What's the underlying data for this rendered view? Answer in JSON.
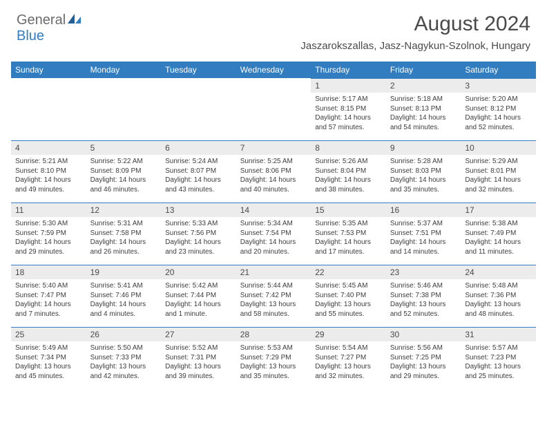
{
  "brand": {
    "word1": "General",
    "word2": "Blue",
    "color_general": "#6b6b6b",
    "color_blue": "#317dc0"
  },
  "title": "August 2024",
  "location": "Jaszarokszallas, Jasz-Nagykun-Szolnok, Hungary",
  "colors": {
    "header_bg": "#317dc0",
    "header_text": "#ffffff",
    "daynum_bg": "#ececec",
    "text": "#4a4a4a",
    "body_text": "#3c3c3c",
    "page_bg": "#ffffff"
  },
  "dayHeaders": [
    "Sunday",
    "Monday",
    "Tuesday",
    "Wednesday",
    "Thursday",
    "Friday",
    "Saturday"
  ],
  "weeks": [
    [
      null,
      null,
      null,
      null,
      {
        "n": "1",
        "sunrise": "Sunrise: 5:17 AM",
        "sunset": "Sunset: 8:15 PM",
        "daylight": "Daylight: 14 hours and 57 minutes."
      },
      {
        "n": "2",
        "sunrise": "Sunrise: 5:18 AM",
        "sunset": "Sunset: 8:13 PM",
        "daylight": "Daylight: 14 hours and 54 minutes."
      },
      {
        "n": "3",
        "sunrise": "Sunrise: 5:20 AM",
        "sunset": "Sunset: 8:12 PM",
        "daylight": "Daylight: 14 hours and 52 minutes."
      }
    ],
    [
      {
        "n": "4",
        "sunrise": "Sunrise: 5:21 AM",
        "sunset": "Sunset: 8:10 PM",
        "daylight": "Daylight: 14 hours and 49 minutes."
      },
      {
        "n": "5",
        "sunrise": "Sunrise: 5:22 AM",
        "sunset": "Sunset: 8:09 PM",
        "daylight": "Daylight: 14 hours and 46 minutes."
      },
      {
        "n": "6",
        "sunrise": "Sunrise: 5:24 AM",
        "sunset": "Sunset: 8:07 PM",
        "daylight": "Daylight: 14 hours and 43 minutes."
      },
      {
        "n": "7",
        "sunrise": "Sunrise: 5:25 AM",
        "sunset": "Sunset: 8:06 PM",
        "daylight": "Daylight: 14 hours and 40 minutes."
      },
      {
        "n": "8",
        "sunrise": "Sunrise: 5:26 AM",
        "sunset": "Sunset: 8:04 PM",
        "daylight": "Daylight: 14 hours and 38 minutes."
      },
      {
        "n": "9",
        "sunrise": "Sunrise: 5:28 AM",
        "sunset": "Sunset: 8:03 PM",
        "daylight": "Daylight: 14 hours and 35 minutes."
      },
      {
        "n": "10",
        "sunrise": "Sunrise: 5:29 AM",
        "sunset": "Sunset: 8:01 PM",
        "daylight": "Daylight: 14 hours and 32 minutes."
      }
    ],
    [
      {
        "n": "11",
        "sunrise": "Sunrise: 5:30 AM",
        "sunset": "Sunset: 7:59 PM",
        "daylight": "Daylight: 14 hours and 29 minutes."
      },
      {
        "n": "12",
        "sunrise": "Sunrise: 5:31 AM",
        "sunset": "Sunset: 7:58 PM",
        "daylight": "Daylight: 14 hours and 26 minutes."
      },
      {
        "n": "13",
        "sunrise": "Sunrise: 5:33 AM",
        "sunset": "Sunset: 7:56 PM",
        "daylight": "Daylight: 14 hours and 23 minutes."
      },
      {
        "n": "14",
        "sunrise": "Sunrise: 5:34 AM",
        "sunset": "Sunset: 7:54 PM",
        "daylight": "Daylight: 14 hours and 20 minutes."
      },
      {
        "n": "15",
        "sunrise": "Sunrise: 5:35 AM",
        "sunset": "Sunset: 7:53 PM",
        "daylight": "Daylight: 14 hours and 17 minutes."
      },
      {
        "n": "16",
        "sunrise": "Sunrise: 5:37 AM",
        "sunset": "Sunset: 7:51 PM",
        "daylight": "Daylight: 14 hours and 14 minutes."
      },
      {
        "n": "17",
        "sunrise": "Sunrise: 5:38 AM",
        "sunset": "Sunset: 7:49 PM",
        "daylight": "Daylight: 14 hours and 11 minutes."
      }
    ],
    [
      {
        "n": "18",
        "sunrise": "Sunrise: 5:40 AM",
        "sunset": "Sunset: 7:47 PM",
        "daylight": "Daylight: 14 hours and 7 minutes."
      },
      {
        "n": "19",
        "sunrise": "Sunrise: 5:41 AM",
        "sunset": "Sunset: 7:46 PM",
        "daylight": "Daylight: 14 hours and 4 minutes."
      },
      {
        "n": "20",
        "sunrise": "Sunrise: 5:42 AM",
        "sunset": "Sunset: 7:44 PM",
        "daylight": "Daylight: 14 hours and 1 minute."
      },
      {
        "n": "21",
        "sunrise": "Sunrise: 5:44 AM",
        "sunset": "Sunset: 7:42 PM",
        "daylight": "Daylight: 13 hours and 58 minutes."
      },
      {
        "n": "22",
        "sunrise": "Sunrise: 5:45 AM",
        "sunset": "Sunset: 7:40 PM",
        "daylight": "Daylight: 13 hours and 55 minutes."
      },
      {
        "n": "23",
        "sunrise": "Sunrise: 5:46 AM",
        "sunset": "Sunset: 7:38 PM",
        "daylight": "Daylight: 13 hours and 52 minutes."
      },
      {
        "n": "24",
        "sunrise": "Sunrise: 5:48 AM",
        "sunset": "Sunset: 7:36 PM",
        "daylight": "Daylight: 13 hours and 48 minutes."
      }
    ],
    [
      {
        "n": "25",
        "sunrise": "Sunrise: 5:49 AM",
        "sunset": "Sunset: 7:34 PM",
        "daylight": "Daylight: 13 hours and 45 minutes."
      },
      {
        "n": "26",
        "sunrise": "Sunrise: 5:50 AM",
        "sunset": "Sunset: 7:33 PM",
        "daylight": "Daylight: 13 hours and 42 minutes."
      },
      {
        "n": "27",
        "sunrise": "Sunrise: 5:52 AM",
        "sunset": "Sunset: 7:31 PM",
        "daylight": "Daylight: 13 hours and 39 minutes."
      },
      {
        "n": "28",
        "sunrise": "Sunrise: 5:53 AM",
        "sunset": "Sunset: 7:29 PM",
        "daylight": "Daylight: 13 hours and 35 minutes."
      },
      {
        "n": "29",
        "sunrise": "Sunrise: 5:54 AM",
        "sunset": "Sunset: 7:27 PM",
        "daylight": "Daylight: 13 hours and 32 minutes."
      },
      {
        "n": "30",
        "sunrise": "Sunrise: 5:56 AM",
        "sunset": "Sunset: 7:25 PM",
        "daylight": "Daylight: 13 hours and 29 minutes."
      },
      {
        "n": "31",
        "sunrise": "Sunrise: 5:57 AM",
        "sunset": "Sunset: 7:23 PM",
        "daylight": "Daylight: 13 hours and 25 minutes."
      }
    ]
  ]
}
